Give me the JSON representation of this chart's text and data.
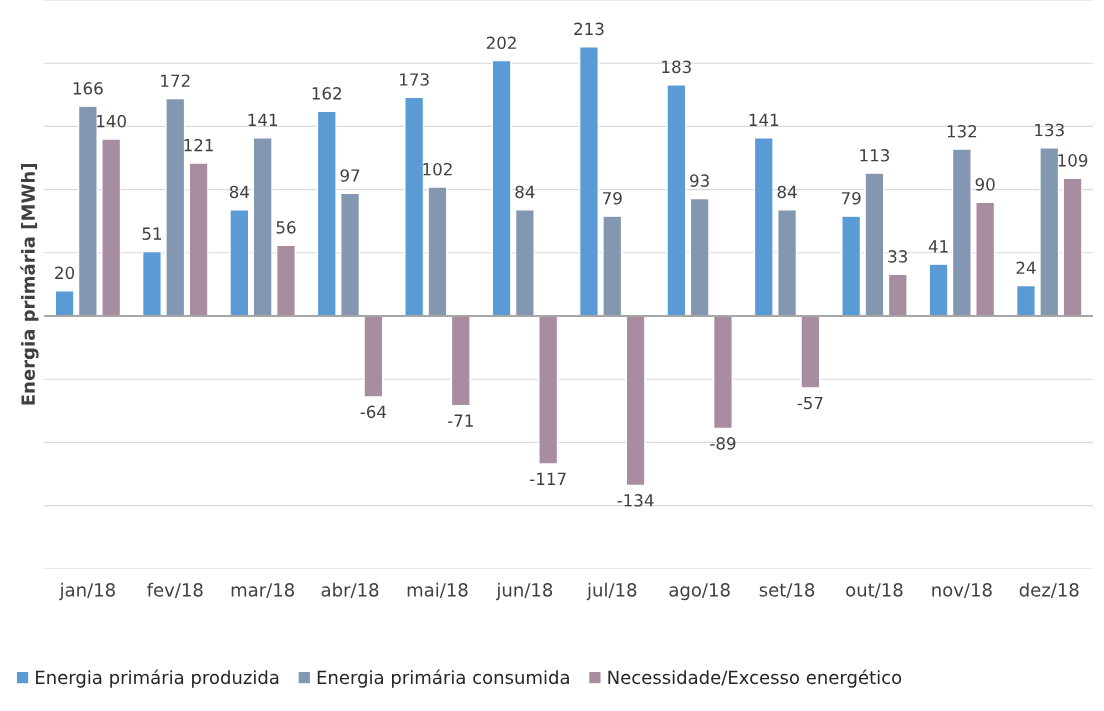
{
  "chart_data": {
    "type": "bar",
    "ylabel": "Energia primária [MWh]",
    "categories": [
      "jan/18",
      "fev/18",
      "mar/18",
      "abr/18",
      "mai/18",
      "jun/18",
      "jul/18",
      "ago/18",
      "set/18",
      "out/18",
      "nov/18",
      "dez/18"
    ],
    "series": [
      {
        "name": "Energia primária produzida",
        "color": "#5b9bd5",
        "values": [
          20,
          51,
          84,
          162,
          173,
          202,
          213,
          183,
          141,
          79,
          41,
          24
        ]
      },
      {
        "name": "Energia primária consumida",
        "color": "#8497b0",
        "values": [
          166,
          172,
          141,
          97,
          102,
          84,
          79,
          93,
          84,
          113,
          132,
          133
        ]
      },
      {
        "name": "Necessidade/Excesso energético",
        "color": "#a88c9f",
        "values": [
          140,
          121,
          56,
          -64,
          -71,
          -117,
          -134,
          -89,
          -57,
          33,
          90,
          109
        ]
      }
    ],
    "ylim": [
      -200,
      250
    ],
    "yticks": [
      {
        "value": -200,
        "label": null
      },
      {
        "value": -150,
        "label": null
      },
      {
        "value": -100,
        "label": null
      },
      {
        "value": -50,
        "label": null
      },
      {
        "value": 0,
        "label": null
      },
      {
        "value": 50,
        "label": null
      },
      {
        "value": 100,
        "label": null
      },
      {
        "value": 150,
        "label": null
      },
      {
        "value": 200,
        "label": null
      },
      {
        "value": 250,
        "label": null
      }
    ],
    "tick_labels": "x",
    "grid": "y",
    "legend": "bottom",
    "data_labels": true
  }
}
